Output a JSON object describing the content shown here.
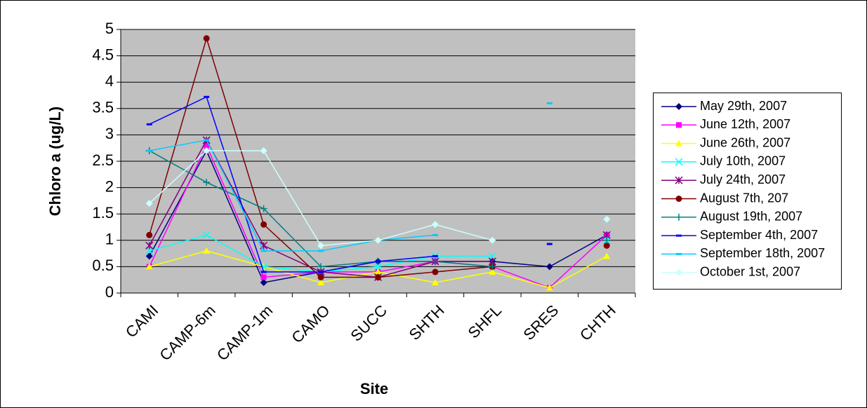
{
  "chart_data": {
    "type": "line",
    "x_label": "Site",
    "y_label": "Chloro a (ug/L)",
    "categories": [
      "CAMI",
      "CAMP-6m",
      "CAMP-1m",
      "CAMO",
      "SUCC",
      "SHTH",
      "SHFL",
      "SRES",
      "CHTH"
    ],
    "ylim": [
      0,
      5
    ],
    "yticks": [
      0,
      0.5,
      1,
      1.5,
      2,
      2.5,
      3,
      3.5,
      4,
      4.5,
      5
    ],
    "grid": true,
    "legend": "right",
    "series": [
      {
        "name": "May 29th, 2007",
        "color": "#000080",
        "marker": "diamond",
        "values": [
          0.7,
          2.7,
          0.2,
          0.4,
          0.6,
          0.6,
          0.6,
          0.5,
          1.1
        ]
      },
      {
        "name": "June 12th, 2007",
        "color": "#ff00ff",
        "marker": "square",
        "values": [
          0.5,
          2.8,
          0.3,
          0.4,
          0.4,
          0.6,
          0.5,
          0.1,
          1.1
        ]
      },
      {
        "name": "June 26th, 2007",
        "color": "#ffff00",
        "marker": "triangle",
        "values": [
          0.5,
          0.8,
          0.5,
          0.2,
          0.4,
          0.2,
          0.4,
          0.1,
          0.7
        ]
      },
      {
        "name": "July 10th, 2007",
        "color": "#00ffff",
        "marker": "x",
        "values": [
          0.8,
          1.1,
          0.5,
          0.4,
          0.5,
          0.7,
          0.7,
          null,
          1.0
        ]
      },
      {
        "name": "July 24th, 2007",
        "color": "#800080",
        "marker": "star",
        "values": [
          0.9,
          2.9,
          0.9,
          0.4,
          0.3,
          0.6,
          0.6,
          null,
          1.1
        ]
      },
      {
        "name": "August 7th, 207",
        "color": "#800000",
        "marker": "circle",
        "values": [
          1.1,
          4.83,
          1.3,
          0.3,
          0.3,
          0.4,
          0.5,
          null,
          0.9
        ]
      },
      {
        "name": "August 19th, 2007",
        "color": "#008080",
        "marker": "plus",
        "values": [
          2.7,
          2.1,
          1.6,
          0.5,
          0.6,
          0.6,
          0.5,
          null,
          1.0
        ]
      },
      {
        "name": "September 4th, 2007",
        "color": "#0000ff",
        "marker": "dash",
        "values": [
          3.2,
          3.72,
          0.4,
          0.4,
          0.6,
          0.7,
          null,
          0.93,
          null
        ]
      },
      {
        "name": "September 18th, 2007",
        "color": "#00ccff",
        "marker": "dash",
        "values": [
          2.7,
          2.9,
          0.8,
          0.8,
          1.0,
          1.1,
          null,
          3.6,
          null
        ]
      },
      {
        "name": "October 1st, 2007",
        "color": "#ccffff",
        "marker": "diamond",
        "values": [
          1.7,
          2.7,
          2.7,
          0.9,
          1.0,
          1.3,
          1.0,
          null,
          1.4
        ]
      }
    ]
  }
}
